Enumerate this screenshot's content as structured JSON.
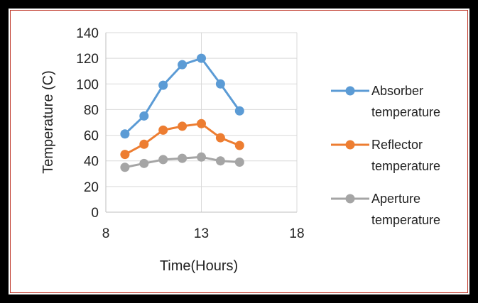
{
  "chart_data": {
    "type": "scatter",
    "xlabel": "Time(Hours)",
    "ylabel": "Temperature (C)",
    "xlim": [
      8,
      18
    ],
    "ylim": [
      0,
      140
    ],
    "xticks": [
      "8",
      "13",
      "18"
    ],
    "yticks": [
      "0",
      "20",
      "40",
      "60",
      "80",
      "100",
      "120",
      "140"
    ],
    "grid": true,
    "legend_position": "right",
    "x": [
      9,
      10,
      11,
      12,
      13,
      14,
      15
    ],
    "series": [
      {
        "name_lines": [
          "Absorber",
          "temperature"
        ],
        "color": "#5b9bd5",
        "values": [
          61,
          75,
          99,
          115,
          120,
          100,
          79
        ]
      },
      {
        "name_lines": [
          "Reflector",
          "temperature"
        ],
        "color": "#ed7d31",
        "values": [
          45,
          53,
          64,
          67,
          69,
          58,
          52
        ]
      },
      {
        "name_lines": [
          "Aperture",
          "temperature"
        ],
        "color": "#a5a5a5",
        "values": [
          35,
          38,
          41,
          42,
          43,
          40,
          39
        ]
      }
    ]
  }
}
